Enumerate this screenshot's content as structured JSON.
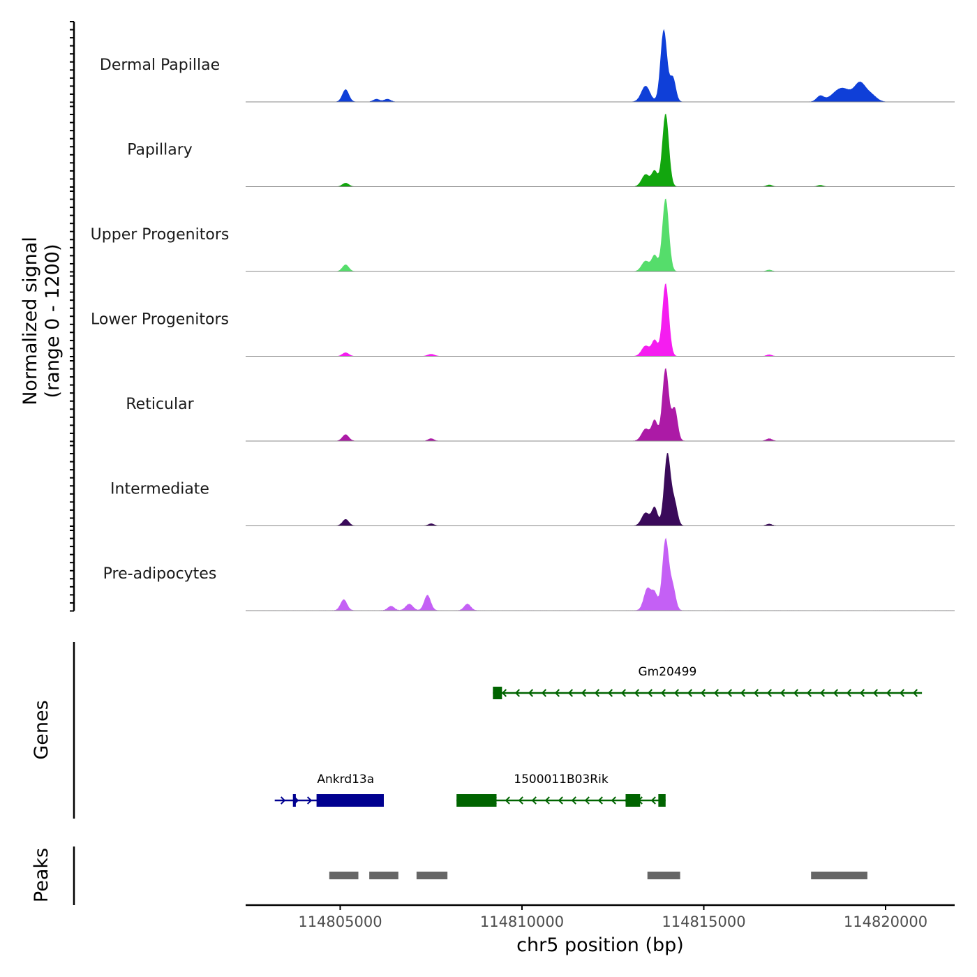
{
  "chart_data": {
    "type": "area",
    "title": "",
    "region": {
      "chromosome": "chr5",
      "start": 114802400,
      "end": 114821900
    },
    "xlabel": "chr5 position (bp)",
    "ylabel_line1": "Normalized signal",
    "ylabel_line2": "(range 0 - 1200)",
    "ylim": [
      0,
      1200
    ],
    "x_ticks": [
      114805000,
      114810000,
      114815000,
      114820000
    ],
    "x_tick_labels": [
      "114805000",
      "114810000",
      "114815000",
      "114820000"
    ],
    "tracks": [
      {
        "name": "Dermal Papillae",
        "color": "#0f3fd8",
        "peaks": [
          [
            114805150,
            180,
            90
          ],
          [
            114806000,
            40,
            90
          ],
          [
            114806300,
            40,
            90
          ],
          [
            114813400,
            230,
            120
          ],
          [
            114813900,
            1050,
            90
          ],
          [
            114814150,
            350,
            80
          ],
          [
            114818200,
            80,
            100
          ],
          [
            114818800,
            200,
            250
          ],
          [
            114819300,
            250,
            150
          ],
          [
            114819600,
            100,
            150
          ]
        ]
      },
      {
        "name": "Papillary",
        "color": "#12a60e",
        "peaks": [
          [
            114805150,
            60,
            90
          ],
          [
            114813400,
            200,
            110
          ],
          [
            114813650,
            250,
            80
          ],
          [
            114813950,
            1200,
            90
          ],
          [
            114816800,
            30,
            80
          ],
          [
            114818200,
            25,
            80
          ]
        ]
      },
      {
        "name": "Upper Progenitors",
        "color": "#55dd6b",
        "peaks": [
          [
            114805150,
            130,
            90
          ],
          [
            114813400,
            200,
            110
          ],
          [
            114813650,
            300,
            80
          ],
          [
            114813950,
            1400,
            90
          ],
          [
            114816800,
            30,
            80
          ]
        ]
      },
      {
        "name": "Lower Progenitors",
        "color": "#f51df0",
        "peaks": [
          [
            114805150,
            70,
            90
          ],
          [
            114807500,
            40,
            100
          ],
          [
            114813400,
            200,
            110
          ],
          [
            114813650,
            300,
            80
          ],
          [
            114813950,
            1400,
            90
          ],
          [
            114816800,
            30,
            80
          ]
        ]
      },
      {
        "name": "Reticular",
        "color": "#ac1aa6",
        "peaks": [
          [
            114805150,
            80,
            90
          ],
          [
            114807500,
            30,
            80
          ],
          [
            114813400,
            150,
            110
          ],
          [
            114813650,
            250,
            80
          ],
          [
            114813950,
            900,
            90
          ],
          [
            114814200,
            400,
            80
          ],
          [
            114816800,
            30,
            80
          ]
        ]
      },
      {
        "name": "Intermediate",
        "color": "#3a0a5a",
        "peaks": [
          [
            114805150,
            90,
            90
          ],
          [
            114807500,
            30,
            80
          ],
          [
            114813400,
            180,
            110
          ],
          [
            114813650,
            250,
            80
          ],
          [
            114814000,
            1000,
            90
          ],
          [
            114814200,
            300,
            80
          ],
          [
            114816800,
            25,
            80
          ]
        ]
      },
      {
        "name": "Pre-adipocytes",
        "color": "#c460f5",
        "peaks": [
          [
            114805100,
            100,
            90
          ],
          [
            114806400,
            40,
            90
          ],
          [
            114806900,
            60,
            100
          ],
          [
            114807400,
            140,
            90
          ],
          [
            114808500,
            60,
            90
          ],
          [
            114813450,
            200,
            100
          ],
          [
            114813650,
            150,
            80
          ],
          [
            114813950,
            650,
            90
          ],
          [
            114814150,
            200,
            80
          ]
        ]
      }
    ],
    "genes_label": "Genes",
    "genes": [
      {
        "name": "Gm20499",
        "strand": "-",
        "color": "#006400",
        "row": 1,
        "start": 114809200,
        "end": 114821000,
        "exons": [
          [
            114809200,
            114809450
          ]
        ]
      },
      {
        "name": "Ankrd13a",
        "strand": "+",
        "color": "#000090",
        "row": 2,
        "start": 114803200,
        "end": 114806200,
        "exons": [
          [
            114803700,
            114803780
          ],
          [
            114804350,
            114806200
          ]
        ]
      },
      {
        "name": "1500011B03Rik",
        "strand": "-",
        "color": "#006400",
        "row": 2,
        "start": 114808200,
        "end": 114813950,
        "exons": [
          [
            114808200,
            114809300
          ],
          [
            114812850,
            114813250
          ],
          [
            114813750,
            114813950
          ]
        ]
      }
    ],
    "peaks_label": "Peaks",
    "peak_regions": [
      [
        114804700,
        114805500
      ],
      [
        114805800,
        114806600
      ],
      [
        114807100,
        114807950
      ],
      [
        114813450,
        114814350
      ],
      [
        114817950,
        114819500
      ]
    ],
    "colors": {
      "axis": "#000000",
      "tick_text": "#4d4d4d",
      "baseline": "#888888",
      "peak_region": "#666666"
    }
  }
}
